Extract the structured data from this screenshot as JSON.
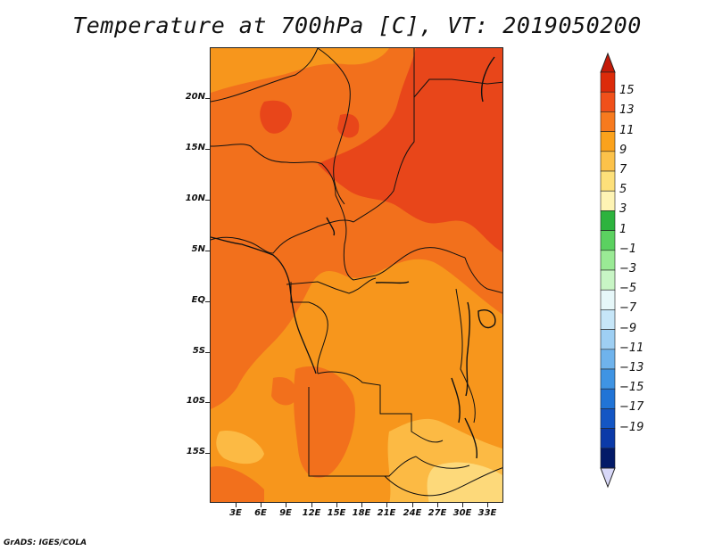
{
  "title": "Temperature at 700hPa [C], VT: 2019050200",
  "credit": "GrADS: IGES/COLA",
  "map": {
    "lat_labels": [
      "20N",
      "15N",
      "10N",
      "5N",
      "EQ",
      "5S",
      "10S",
      "15S"
    ],
    "lon_labels": [
      "3E",
      "6E",
      "9E",
      "12E",
      "15E",
      "18E",
      "21E",
      "24E",
      "27E",
      "30E",
      "33E"
    ],
    "region": "Central Africa (approx. 0E–35E, 20S–24N)"
  },
  "colorbar": {
    "labels": [
      "15",
      "13",
      "11",
      "9",
      "7",
      "5",
      "3",
      "1",
      "−1",
      "−3",
      "−5",
      "−7",
      "−9",
      "−11",
      "−13",
      "−15",
      "−17",
      "−19"
    ],
    "colors": [
      "#dc2b0a",
      "#f0501a",
      "#f77a1e",
      "#fba21c",
      "#fcc24a",
      "#fde07a",
      "#fef4b4",
      "#2db33e",
      "#5bd160",
      "#9aea95",
      "#c8f5c5",
      "#e6f7f9",
      "#c6e6f8",
      "#9ecff3",
      "#6fb3ec",
      "#3f94e3",
      "#2174d6",
      "#1456c4",
      "#0b3aa8",
      "#031a68"
    ],
    "top_arrow_color": "#c41a08",
    "bottom_arrow_color": "#d8d8f8"
  }
}
